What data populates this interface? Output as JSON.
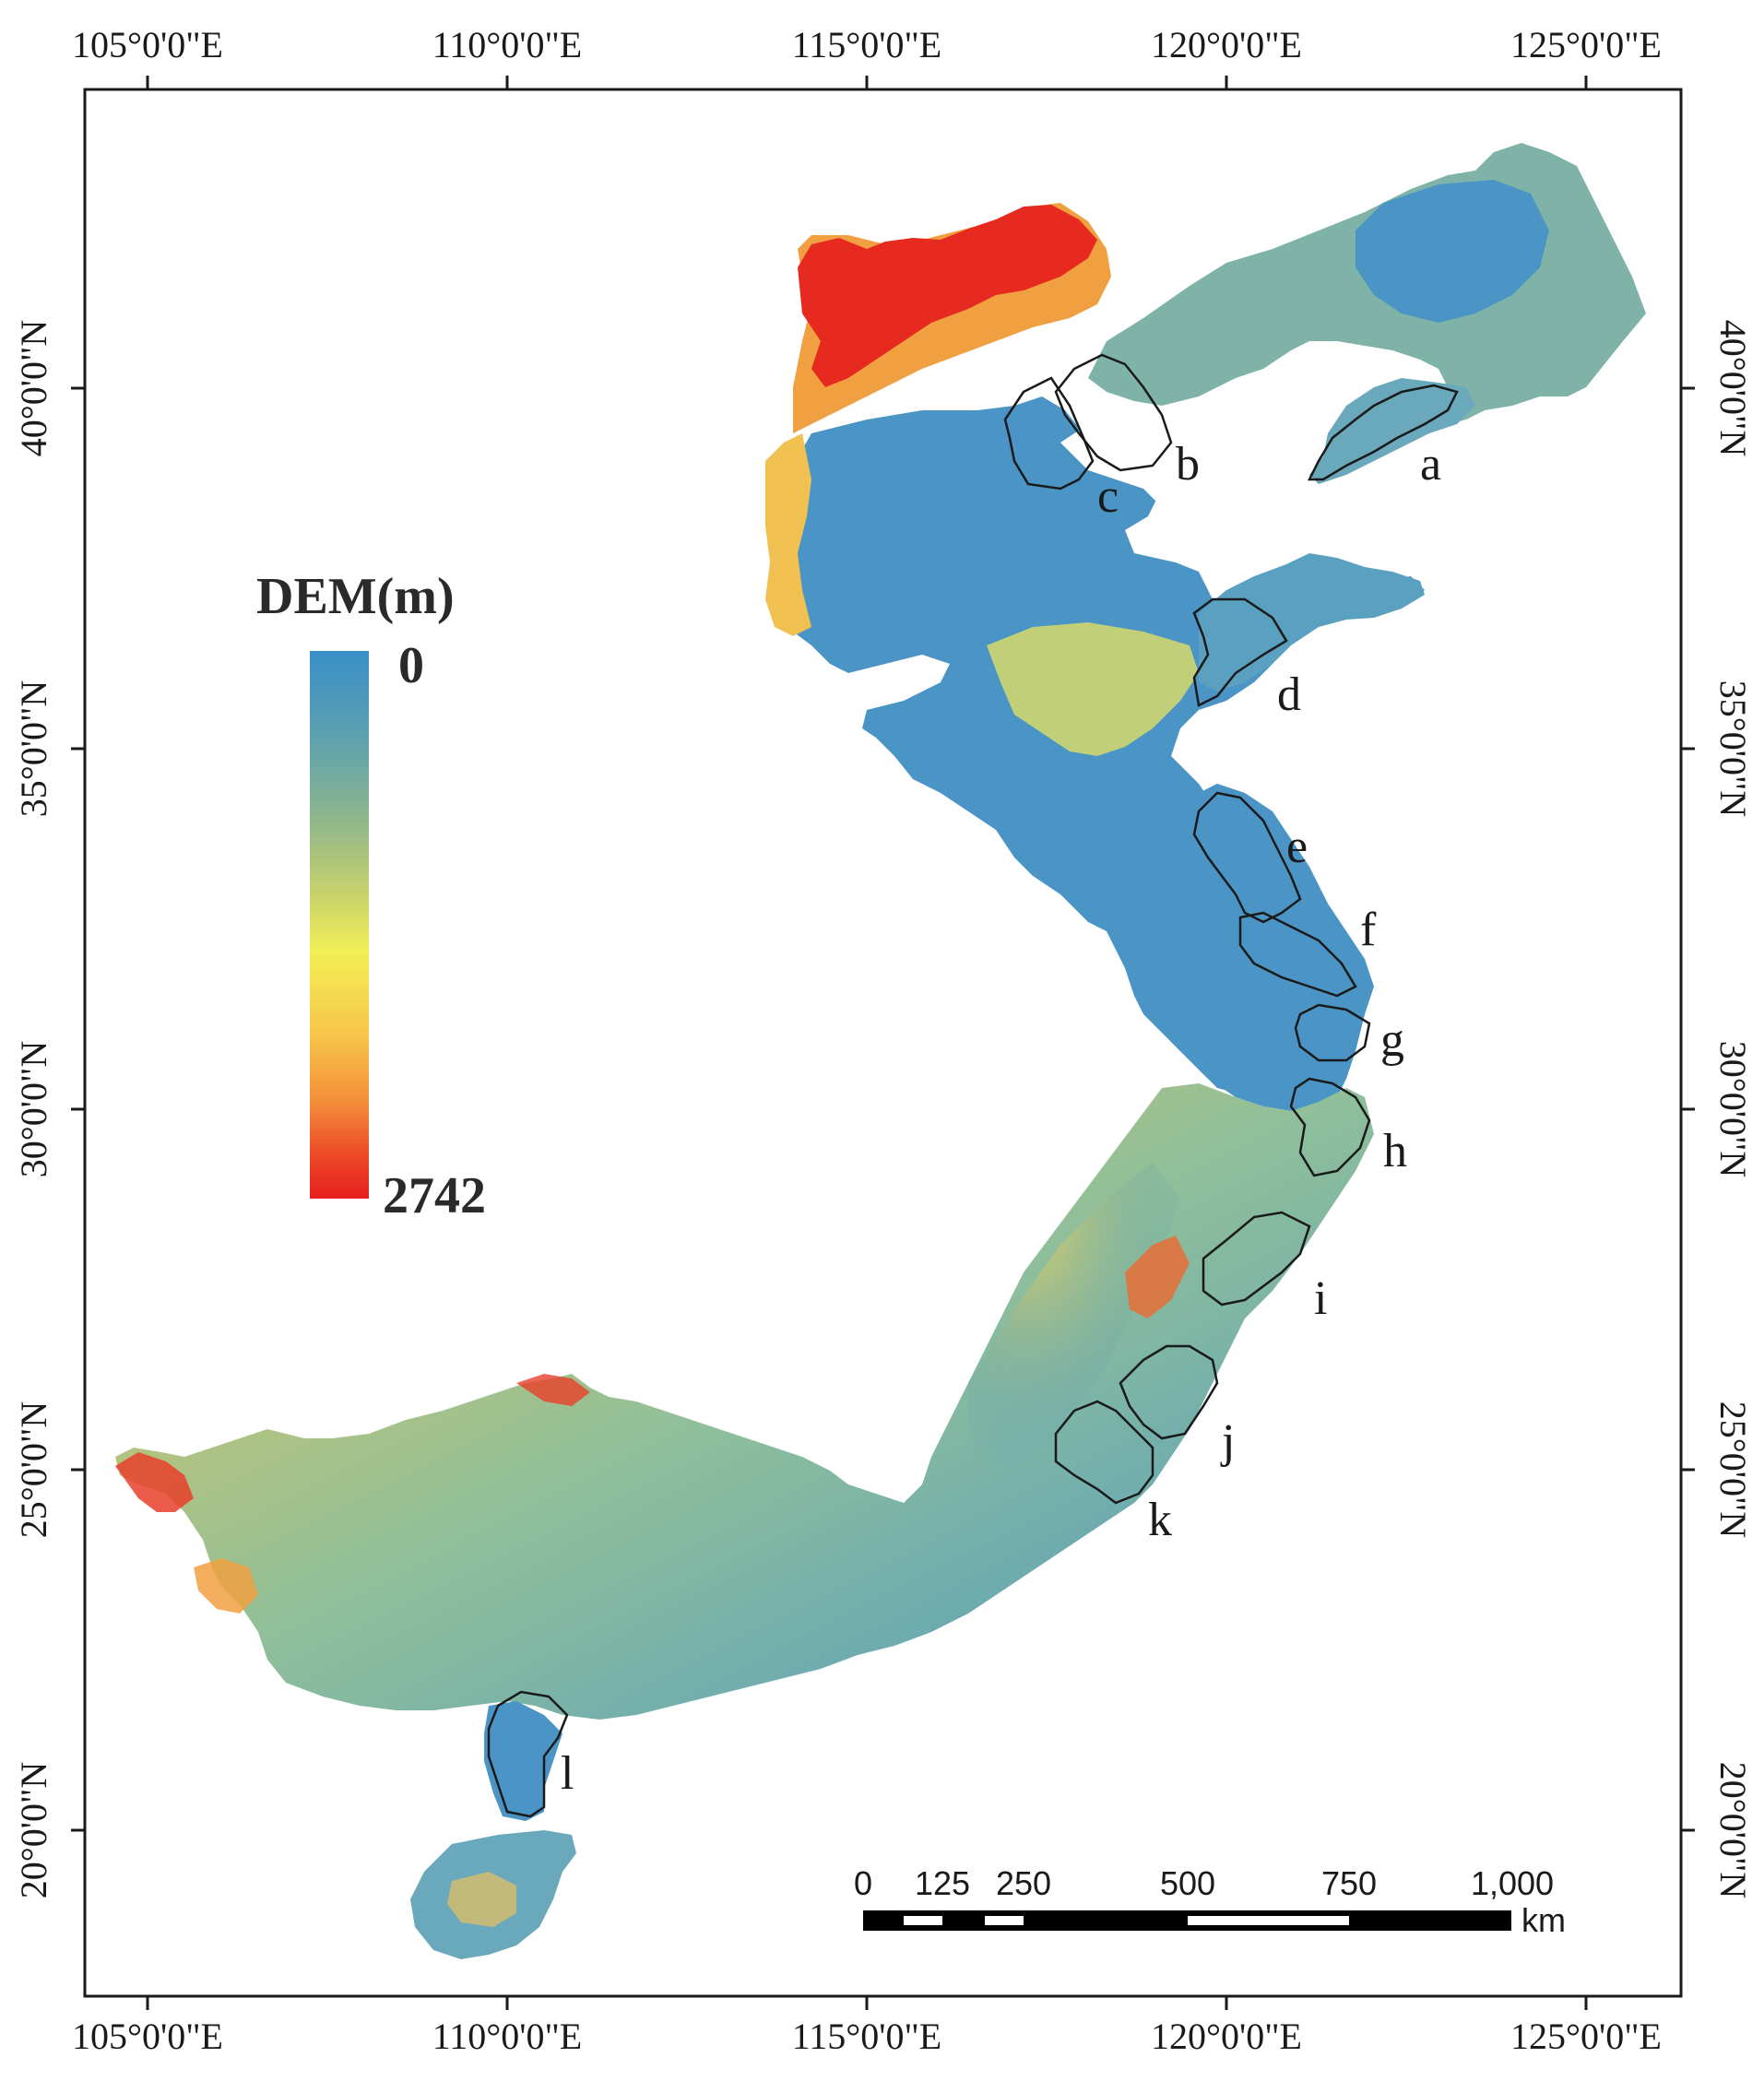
{
  "map": {
    "axes": {
      "top_ticks": [
        "105°0'0\"E",
        "110°0'0\"E",
        "115°0'0\"E",
        "120°0'0\"E",
        "125°0'0\"E"
      ],
      "bottom_ticks": [
        "105°0'0\"E",
        "110°0'0\"E",
        "115°0'0\"E",
        "120°0'0\"E",
        "125°0'0\"E"
      ],
      "left_ticks": [
        "40°0'0\"N",
        "35°0'0\"N",
        "30°0'0\"N",
        "25°0'0\"N",
        "20°0'0\"N"
      ],
      "right_ticks": [
        "40°0'0\"N",
        "35°0'0\"N",
        "30°0'0\"N",
        "25°0'0\"N",
        "20°0'0\"N"
      ]
    },
    "legend": {
      "title": "DEM(m)",
      "min_label": "0",
      "max_label": "2742",
      "colors": [
        "#3a8fc8",
        "#5aa0b0",
        "#8bb58e",
        "#c9d36a",
        "#f2ef55",
        "#f6c64a",
        "#f5903a",
        "#ec4a28",
        "#e61e1e"
      ]
    },
    "regions": [
      "a",
      "b",
      "c",
      "d",
      "e",
      "f",
      "g",
      "h",
      "i",
      "j",
      "k",
      "l"
    ],
    "scale_bar": {
      "labels": [
        "0",
        "125",
        "250",
        "500",
        "750",
        "1,000"
      ],
      "unit": "km"
    },
    "palette": {
      "low": "#3a8fc8",
      "mid": "#f2ef55",
      "high": "#e61e1e",
      "outline": "#1a1a1a"
    }
  }
}
